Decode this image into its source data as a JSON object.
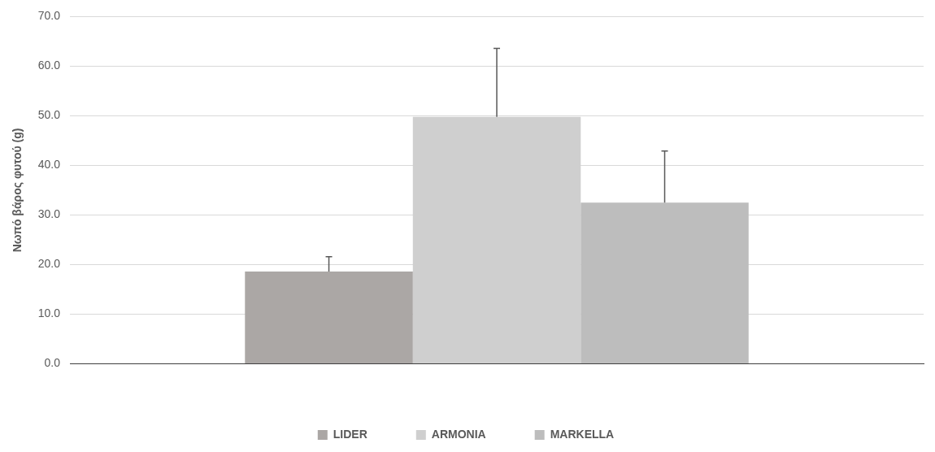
{
  "chart_data": {
    "type": "bar",
    "ylabel": "Νωπό βάρος φυτού (g)",
    "categories": [
      null
    ],
    "series": [
      {
        "name": "LIDER",
        "color": "#aba7a5",
        "values": [
          18.6
        ],
        "errors": [
          [
            18.6,
            21.6
          ]
        ]
      },
      {
        "name": "ARMONIA",
        "color": "#cfcfcf",
        "values": [
          49.8
        ],
        "errors": [
          [
            49.8,
            63.6
          ]
        ]
      },
      {
        "name": "MARKELLA",
        "color": "#bdbdbd",
        "values": [
          32.5
        ],
        "errors": [
          [
            32.5,
            42.9
          ]
        ]
      }
    ],
    "ylim": [
      0,
      70
    ],
    "yticks": [
      {
        "value": 0,
        "label": "0.0"
      },
      {
        "value": 10,
        "label": "10.0"
      },
      {
        "value": 20,
        "label": "20.0"
      },
      {
        "value": 30,
        "label": "30.0"
      },
      {
        "value": 40,
        "label": "40.0"
      },
      {
        "value": 50,
        "label": "50.0"
      },
      {
        "value": 60,
        "label": "60.0"
      },
      {
        "value": 70,
        "label": "70.0"
      }
    ],
    "grid": "y",
    "legend": "bottom"
  }
}
